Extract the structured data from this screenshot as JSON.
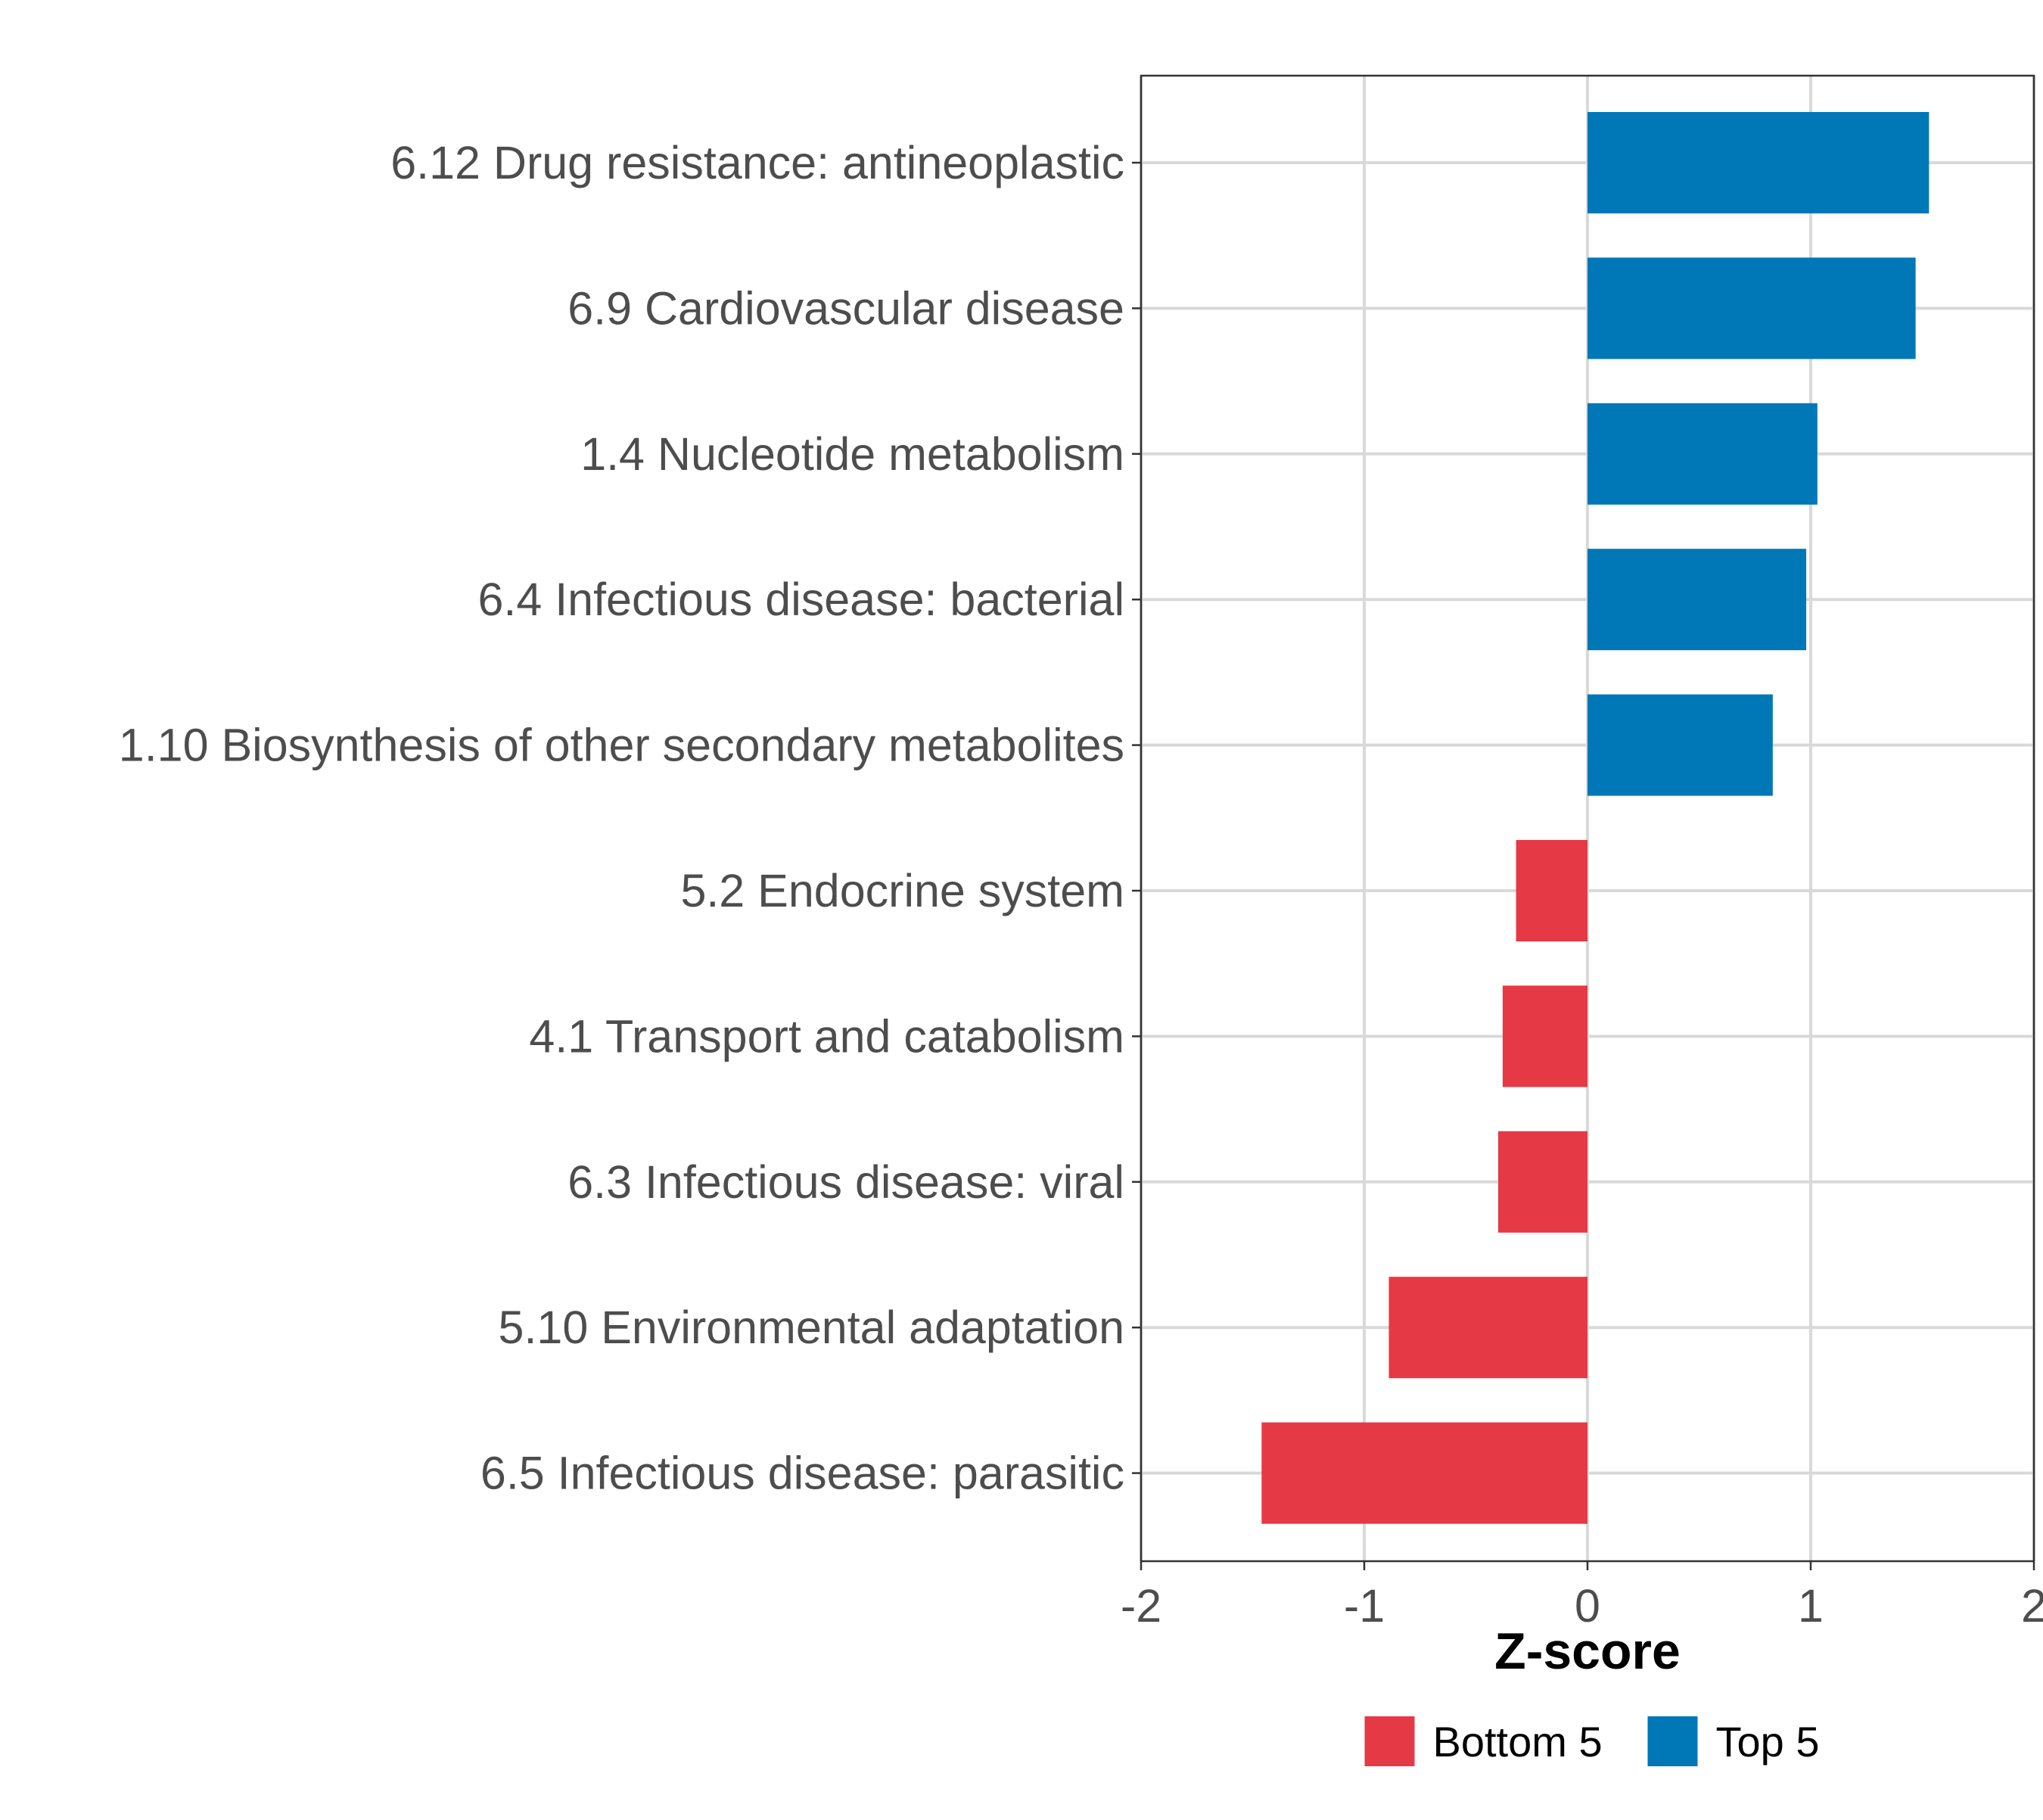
{
  "chart_data": {
    "type": "bar",
    "orientation": "horizontal",
    "title": "",
    "xlabel": "Z-score",
    "ylabel": "",
    "xlim": [
      -2,
      2
    ],
    "xticks": [
      -2,
      -1,
      0,
      1,
      2
    ],
    "xtick_labels": [
      "-2",
      "-1",
      "0",
      "1",
      "2"
    ],
    "grid": true,
    "categories": [
      "6.12 Drug resistance: antineoplastic",
      "6.9 Cardiovascular disease",
      "1.4 Nucleotide metabolism",
      "6.4 Infectious disease: bacterial",
      "1.10 Biosynthesis of other secondary metabolites",
      "5.2 Endocrine system",
      "4.1 Transport and catabolism",
      "6.3 Infectious disease: viral",
      "5.10 Environmental adaptation",
      "6.5 Infectious disease: parasitic"
    ],
    "values": [
      1.53,
      1.47,
      1.03,
      0.98,
      0.83,
      -0.32,
      -0.38,
      -0.4,
      -0.89,
      -1.46
    ],
    "groups": [
      "Top 5",
      "Top 5",
      "Top 5",
      "Top 5",
      "Top 5",
      "Bottom 5",
      "Bottom 5",
      "Bottom 5",
      "Bottom 5",
      "Bottom 5"
    ],
    "legend": {
      "position": "bottom",
      "entries": [
        {
          "label": "Bottom 5",
          "color": "#e63946"
        },
        {
          "label": "Top 5",
          "color": "#0077b6"
        }
      ]
    }
  }
}
